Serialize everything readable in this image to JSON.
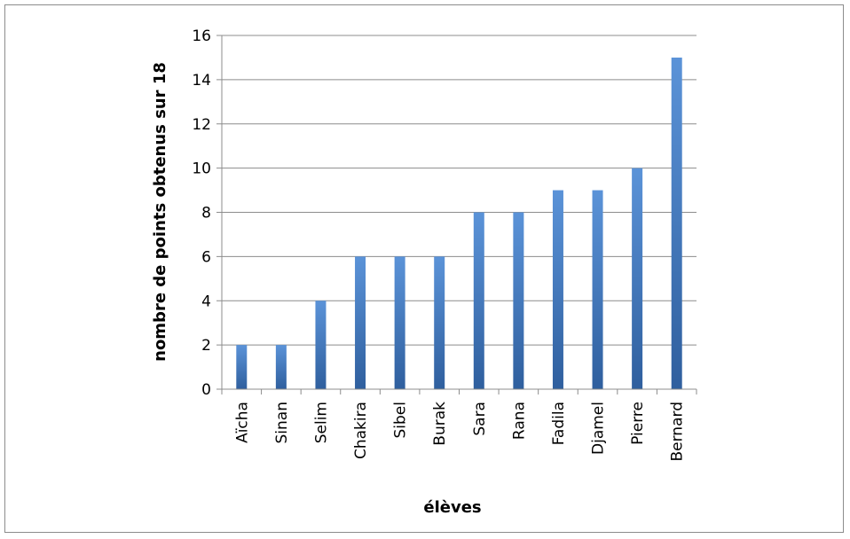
{
  "chart_data": {
    "type": "bar",
    "categories": [
      "Aïcha",
      "Sinan",
      "Selim",
      "Chakira",
      "Sibel",
      "Burak",
      "Sara",
      "Rana",
      "Fadila",
      "Djamel",
      "Pierre",
      "Bernard"
    ],
    "values": [
      2,
      2,
      4,
      6,
      6,
      6,
      8,
      8,
      9,
      9,
      10,
      15
    ],
    "title": "",
    "xlabel": "élèves",
    "ylabel": "nombre de points obtenus sur 18",
    "ylim": [
      0,
      16
    ],
    "yticks": [
      0,
      2,
      4,
      6,
      8,
      10,
      12,
      14,
      16
    ],
    "grid": true,
    "legend": "none",
    "colors": {
      "bar_light": "#5b93d8",
      "bar_dark": "#2f5f9e",
      "grid": "#8c8c8c",
      "axis": "#8c8c8c",
      "frame": "#8c8c8c"
    }
  }
}
